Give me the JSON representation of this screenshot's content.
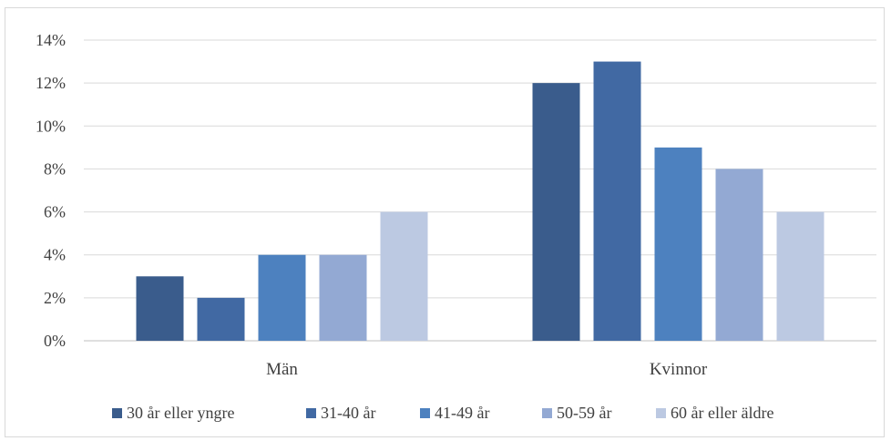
{
  "chart_data": {
    "type": "bar",
    "categories": [
      "Män",
      "Kvinnor"
    ],
    "series": [
      {
        "name": "30 år eller yngre",
        "values": [
          3,
          12
        ],
        "color": "#3a5c8c"
      },
      {
        "name": "31-40 år",
        "values": [
          2,
          13
        ],
        "color": "#4169a3"
      },
      {
        "name": "41-49 år",
        "values": [
          4,
          9
        ],
        "color": "#4d81bf"
      },
      {
        "name": "50-59 år",
        "values": [
          4,
          8
        ],
        "color": "#93a9d3"
      },
      {
        "name": "60 år eller äldre",
        "values": [
          6,
          6
        ],
        "color": "#bcc9e2"
      }
    ],
    "y_ticks": [
      "0%",
      "2%",
      "4%",
      "6%",
      "8%",
      "10%",
      "12%",
      "14%"
    ],
    "ylim": [
      0,
      14
    ],
    "y_unit": "%",
    "grid": true,
    "legend_position": "bottom",
    "title": "",
    "xlabel": "",
    "ylabel": ""
  }
}
